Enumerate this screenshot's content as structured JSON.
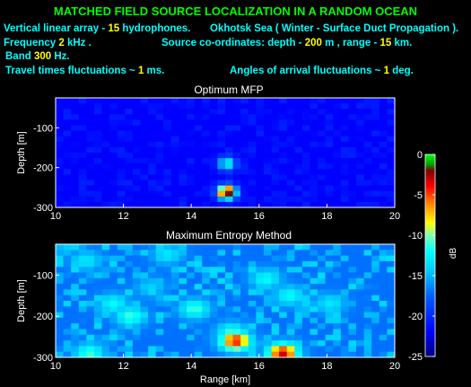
{
  "header": {
    "title": "MATCHED FIELD SOURCE LOCALIZATION IN A RANDOM OCEAN",
    "line1_left_prefix": "Vertical linear array - ",
    "line1_left_value": "15",
    "line1_left_suffix": " hydrophones.",
    "line1_right": "Okhotsk Sea ( Winter - Surface Duct Propagation ).",
    "line2_left_prefix": "Frequency  ",
    "line2_left_value": "2",
    "line2_left_suffix": "  kHz .",
    "line2_right_prefix": "Source co-ordinates: depth - ",
    "line2_right_depth": "200",
    "line2_right_mid": " m , range - ",
    "line2_right_range": "15",
    "line2_right_suffix": " km.",
    "line3_prefix": "Band  ",
    "line3_value": "300",
    "line3_suffix": "  Hz.",
    "line4_left_prefix": "Travel times fluctuations  ~ ",
    "line4_left_value": "1",
    "line4_left_suffix": " ms.",
    "line4_right_prefix": "Angles of arrival fluctuations  ~ ",
    "line4_right_value": "1",
    "line4_right_suffix": "  deg."
  },
  "chart_data": [
    {
      "type": "heatmap",
      "title": "Optimum MFP",
      "xlabel": "",
      "ylabel": "Depth [m]",
      "xlim": [
        10,
        20
      ],
      "ylim": [
        -300,
        -25
      ],
      "xticks": [
        "10",
        "12",
        "14",
        "16",
        "18",
        "20"
      ],
      "yticks": [
        "-100",
        "-200",
        "-300"
      ],
      "background_db": -22,
      "peaks": [
        {
          "range_km": 15.05,
          "depth_m": -262,
          "peak_db": 0
        },
        {
          "range_km": 15.05,
          "depth_m": -190,
          "peak_db": -12
        }
      ]
    },
    {
      "type": "heatmap",
      "title": "Maximum Entropy Method",
      "xlabel": "Range [km]",
      "ylabel": "Depth [m]",
      "xlim": [
        10,
        20
      ],
      "ylim": [
        -300,
        -25
      ],
      "xticks": [
        "10",
        "12",
        "14",
        "16",
        "18",
        "20"
      ],
      "yticks": [
        "-100",
        "-200",
        "-300"
      ],
      "background_db": -17,
      "peaks": [
        {
          "range_km": 11.7,
          "depth_m": -170,
          "peak_db": -12
        },
        {
          "range_km": 12.2,
          "depth_m": -200,
          "peak_db": -11
        },
        {
          "range_km": 11.0,
          "depth_m": -290,
          "peak_db": -11
        },
        {
          "range_km": 14.1,
          "depth_m": -182,
          "peak_db": -11
        },
        {
          "range_km": 15.2,
          "depth_m": -240,
          "peak_db": -11
        },
        {
          "range_km": 15.3,
          "depth_m": -260,
          "peak_db": -4
        },
        {
          "range_km": 16.7,
          "depth_m": -290,
          "peak_db": -3
        },
        {
          "range_km": 16.2,
          "depth_m": -110,
          "peak_db": -12
        },
        {
          "range_km": 16.9,
          "depth_m": -150,
          "peak_db": -12
        },
        {
          "range_km": 10.9,
          "depth_m": -65,
          "peak_db": -13
        },
        {
          "range_km": 13.3,
          "depth_m": -50,
          "peak_db": -13
        },
        {
          "range_km": 18.1,
          "depth_m": -170,
          "peak_db": -13
        },
        {
          "range_km": 12.8,
          "depth_m": -130,
          "peak_db": -14
        }
      ]
    }
  ],
  "colorbar": {
    "label": "dB",
    "range": [
      -25,
      0
    ],
    "ticks": [
      "0",
      "-5",
      "-10",
      "-15",
      "-20",
      "-25"
    ]
  }
}
